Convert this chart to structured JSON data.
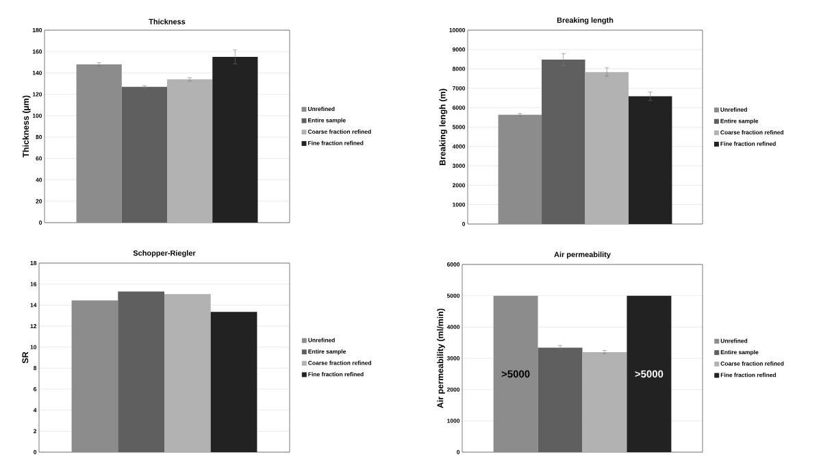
{
  "chart_data": [
    {
      "type": "bar",
      "title": "Thickness",
      "ylabel": "Thickness (µm)",
      "categories": [
        null
      ],
      "ylim": [
        0,
        180
      ],
      "yticks": [
        0,
        20,
        40,
        60,
        80,
        100,
        120,
        140,
        160,
        180
      ],
      "grid": "y",
      "legend": "right",
      "series": [
        {
          "name": "Unrefined",
          "color": "#8c8c8c",
          "values": [
            148
          ],
          "errors": [
            1.5
          ]
        },
        {
          "name": "Entire sample",
          "color": "#5f5f5f",
          "values": [
            127
          ],
          "errors": [
            1
          ]
        },
        {
          "name": "Coarse fraction refined",
          "color": "#b2b2b2",
          "values": [
            134
          ],
          "errors": [
            1.5
          ]
        },
        {
          "name": "Fine fraction refined",
          "color": "#222222",
          "values": [
            155
          ],
          "errors": [
            6.5
          ]
        }
      ]
    },
    {
      "type": "bar",
      "title": "Breaking length",
      "ylabel": "Breaking lengh (m)",
      "categories": [
        null
      ],
      "ylim": [
        0,
        10000
      ],
      "yticks": [
        0,
        1000,
        2000,
        3000,
        4000,
        5000,
        6000,
        7000,
        8000,
        9000,
        10000
      ],
      "grid": "y",
      "legend": "right",
      "series": [
        {
          "name": "Unrefined",
          "color": "#8c8c8c",
          "values": [
            5640
          ],
          "errors": [
            60
          ]
        },
        {
          "name": "Entire sample",
          "color": "#5f5f5f",
          "values": [
            8480
          ],
          "errors": [
            300
          ]
        },
        {
          "name": "Coarse fraction refined",
          "color": "#b2b2b2",
          "values": [
            7840
          ],
          "errors": [
            220
          ]
        },
        {
          "name": "Fine fraction refined",
          "color": "#222222",
          "values": [
            6590
          ],
          "errors": [
            220
          ]
        }
      ]
    },
    {
      "type": "bar",
      "title": "Schopper-Riegler",
      "ylabel": "SR",
      "categories": [
        null
      ],
      "ylim": [
        0,
        18
      ],
      "yticks": [
        0,
        2,
        4,
        6,
        8,
        10,
        12,
        14,
        16,
        18
      ],
      "grid": "y",
      "legend": "right",
      "series": [
        {
          "name": "Unrefined",
          "color": "#8c8c8c",
          "values": [
            14.45
          ]
        },
        {
          "name": "Entire sample",
          "color": "#5f5f5f",
          "values": [
            15.3
          ]
        },
        {
          "name": "Coarse fraction refined",
          "color": "#b2b2b2",
          "values": [
            15.05
          ]
        },
        {
          "name": "Fine fraction refined",
          "color": "#222222",
          "values": [
            13.35
          ]
        }
      ]
    },
    {
      "type": "bar",
      "title": "Air permeability",
      "ylabel": "Air permeability (ml/min)",
      "categories": [
        null
      ],
      "ylim": [
        0,
        6000
      ],
      "yticks": [
        0,
        1000,
        2000,
        3000,
        4000,
        5000,
        6000
      ],
      "grid": "y",
      "legend": "right",
      "series": [
        {
          "name": "Unrefined",
          "color": "#8c8c8c",
          "values": [
            5000
          ],
          "value_labels": [
            ">5000"
          ]
        },
        {
          "name": "Entire sample",
          "color": "#5f5f5f",
          "values": [
            3340
          ],
          "errors": [
            70
          ]
        },
        {
          "name": "Coarse fraction refined",
          "color": "#b2b2b2",
          "values": [
            3200
          ],
          "errors": [
            50
          ]
        },
        {
          "name": "Fine fraction refined",
          "color": "#222222",
          "values": [
            5000
          ],
          "value_labels": [
            ">5000"
          ]
        }
      ]
    }
  ]
}
